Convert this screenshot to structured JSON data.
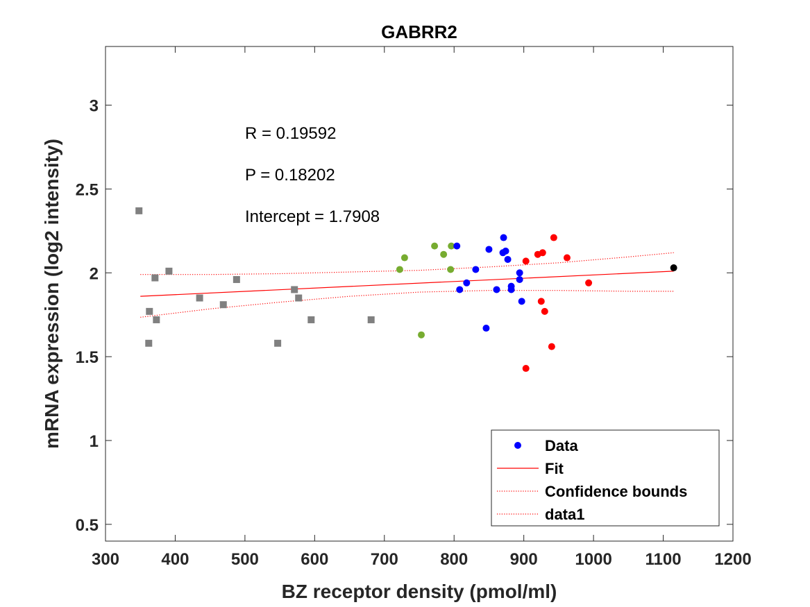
{
  "chart_data": {
    "type": "scatter",
    "title": "GABRR2",
    "xlabel": "BZ receptor density (pmol/ml)",
    "ylabel": "mRNA expression (log2 intensity)",
    "xlim": [
      300,
      1200
    ],
    "ylim": [
      0.4,
      3.35
    ],
    "xticks": [
      300,
      400,
      500,
      600,
      700,
      800,
      900,
      1000,
      1100,
      1200
    ],
    "yticks": [
      0.5,
      1,
      1.5,
      2,
      2.5,
      3
    ],
    "ytick_labels": [
      "0.5",
      "1",
      "1.5",
      "2",
      "2.5",
      "3"
    ],
    "grid": false,
    "legend_position": "bottom-right",
    "annotations": [
      "R = 0.19592",
      "P = 0.18202",
      "Intercept = 1.7908"
    ],
    "legend": [
      {
        "label": "Data",
        "style": "marker",
        "color": "#0000ff"
      },
      {
        "label": "Fit",
        "style": "solid-line",
        "color": "#ff0000"
      },
      {
        "label": "Confidence bounds",
        "style": "dotted-line",
        "color": "#ff0000"
      },
      {
        "label": "data1",
        "style": "dotted-line",
        "color": "#ff0000"
      }
    ],
    "fit_line": {
      "x": [
        350,
        1115
      ],
      "y": [
        1.86,
        2.01
      ],
      "color": "#ff0000"
    },
    "confidence_bounds": {
      "x": [
        350,
        450,
        550,
        650,
        750,
        850,
        950,
        1050,
        1115
      ],
      "upper": [
        1.99,
        1.99,
        1.995,
        2.005,
        2.015,
        2.035,
        2.06,
        2.095,
        2.12
      ],
      "lower": [
        1.735,
        1.785,
        1.825,
        1.86,
        1.885,
        1.895,
        1.895,
        1.89,
        1.89
      ],
      "color": "#ff0000"
    },
    "series": [
      {
        "group": "gray",
        "marker": "square",
        "color": "#808080",
        "points": [
          [
            348,
            2.37
          ],
          [
            363,
            1.77
          ],
          [
            362,
            1.58
          ],
          [
            371,
            1.97
          ],
          [
            373,
            1.72
          ],
          [
            391,
            2.01
          ],
          [
            435,
            1.85
          ],
          [
            469,
            1.81
          ],
          [
            488,
            1.96
          ],
          [
            547,
            1.58
          ],
          [
            571,
            1.9
          ],
          [
            577,
            1.85
          ],
          [
            595,
            1.72
          ],
          [
            681,
            1.72
          ]
        ]
      },
      {
        "group": "green",
        "marker": "circle",
        "color": "#77ac30",
        "points": [
          [
            722,
            2.02
          ],
          [
            729,
            2.09
          ],
          [
            753,
            1.63
          ],
          [
            772,
            2.16
          ],
          [
            785,
            2.11
          ],
          [
            796,
            2.16
          ],
          [
            795,
            2.02
          ]
        ]
      },
      {
        "group": "blue",
        "marker": "circle",
        "color": "#0000ff",
        "points": [
          [
            804,
            2.16
          ],
          [
            808,
            1.9
          ],
          [
            818,
            1.94
          ],
          [
            831,
            2.02
          ],
          [
            846,
            1.67
          ],
          [
            850,
            2.14
          ],
          [
            861,
            1.9
          ],
          [
            870,
            2.12
          ],
          [
            871,
            2.21
          ],
          [
            874,
            2.13
          ],
          [
            877,
            2.08
          ],
          [
            882,
            1.9
          ],
          [
            882,
            1.92
          ],
          [
            894,
            2.0
          ],
          [
            894,
            1.96
          ],
          [
            897,
            1.83
          ]
        ]
      },
      {
        "group": "red",
        "marker": "circle",
        "color": "#ff0000",
        "points": [
          [
            903,
            1.43
          ],
          [
            903,
            2.07
          ],
          [
            920,
            2.11
          ],
          [
            925,
            1.83
          ],
          [
            927,
            2.12
          ],
          [
            930,
            1.77
          ],
          [
            940,
            1.56
          ],
          [
            943,
            2.21
          ],
          [
            962,
            2.09
          ],
          [
            993,
            1.94
          ]
        ]
      },
      {
        "group": "black",
        "marker": "circle",
        "color": "#000000",
        "points": [
          [
            1115,
            2.03
          ]
        ]
      }
    ]
  }
}
